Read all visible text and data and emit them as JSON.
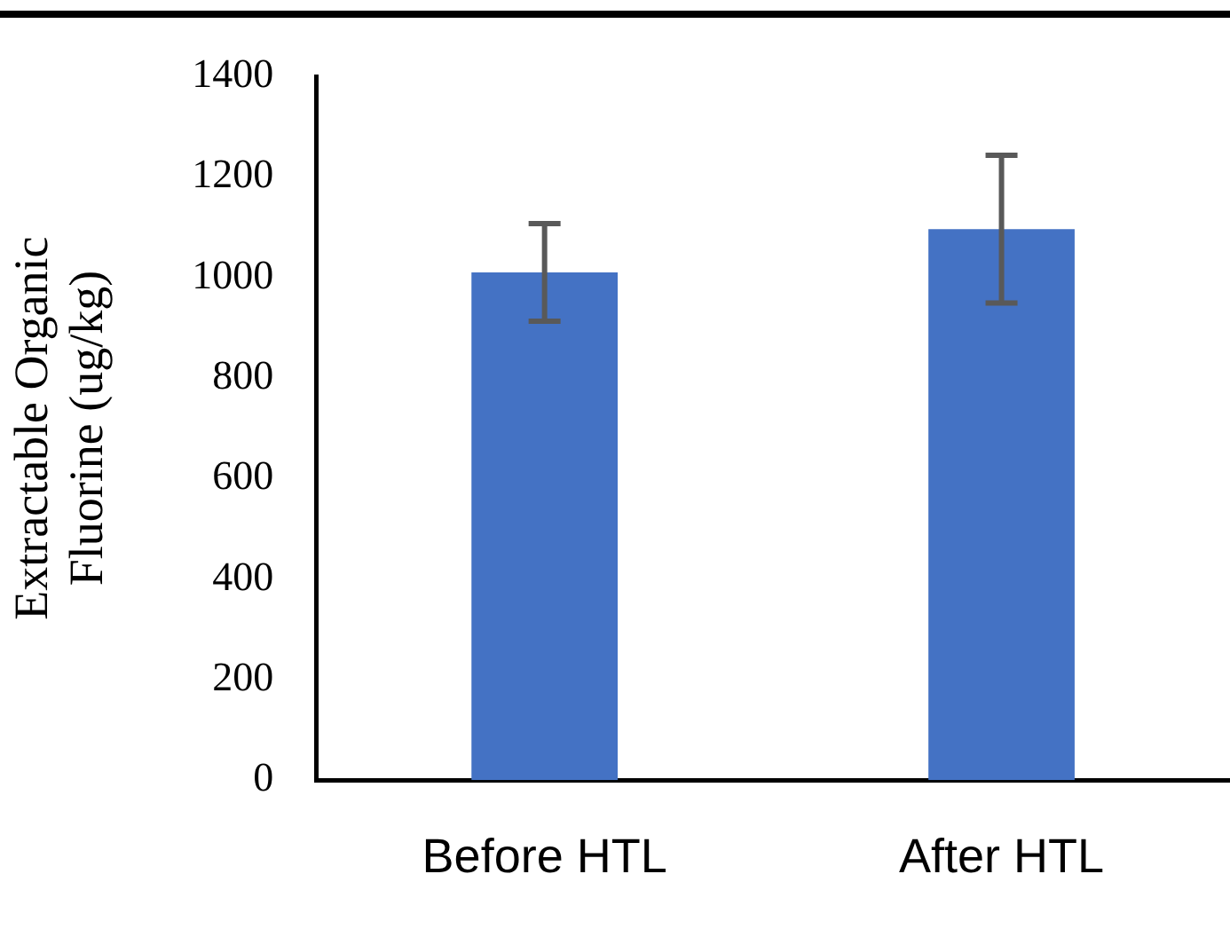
{
  "chart_data": {
    "type": "bar",
    "ylabel": "Extractable Organic Fluorine (ug/kg)",
    "categories": [
      "Before HTL",
      "After HTL"
    ],
    "values": [
      1010,
      1096
    ],
    "errors": [
      97,
      147
    ],
    "color": "#4472c4",
    "ylim": [
      0,
      1400
    ],
    "yticks": [
      0,
      200,
      400,
      600,
      800,
      1000,
      1200,
      1400
    ],
    "grid": false,
    "legend": false
  }
}
